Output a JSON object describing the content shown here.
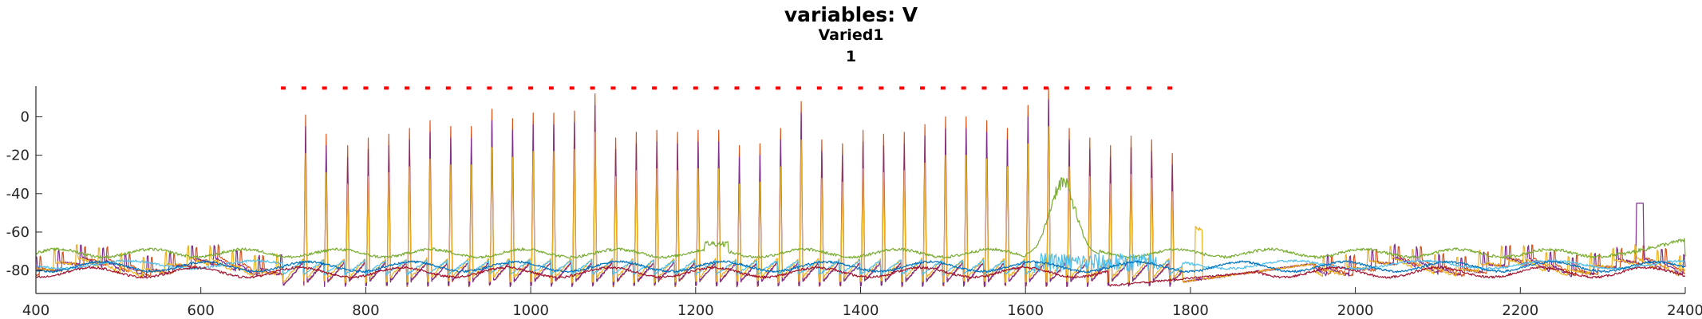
{
  "chart_data": {
    "type": "line",
    "title": "variables: V",
    "subtitle": "Varied1",
    "subtitle2": "1",
    "xlabel": "",
    "ylabel": "",
    "xlim": [
      400,
      2400
    ],
    "ylim": [
      -92,
      16
    ],
    "x_ticks": [
      400,
      600,
      800,
      1000,
      1200,
      1400,
      1600,
      1800,
      2000,
      2200,
      2400
    ],
    "y_ticks": [
      -80,
      -60,
      -40,
      -20,
      0
    ],
    "grid": false,
    "legend": "none",
    "series": [
      {
        "color": "#D95319",
        "style": "spiking"
      },
      {
        "color": "#7E2F8E",
        "style": "spiking"
      },
      {
        "color": "#EDB120",
        "style": "spiking"
      },
      {
        "color": "#77AC30",
        "style": "tonic"
      },
      {
        "color": "#4DBEEE",
        "style": "tonic"
      },
      {
        "color": "#0072BD",
        "style": "subthreshold"
      },
      {
        "color": "#A2142F",
        "style": "subthreshold"
      }
    ],
    "stimulus_markers": {
      "color": "#FF0000",
      "y": 15,
      "x_start": 700,
      "x_end": 1780,
      "step": 25
    },
    "spike_times": [
      727,
      752,
      778,
      803,
      828,
      853,
      878,
      903,
      928,
      953,
      978,
      1003,
      1028,
      1053,
      1078,
      1103,
      1128,
      1153,
      1178,
      1203,
      1228,
      1253,
      1278,
      1303,
      1328,
      1353,
      1378,
      1403,
      1428,
      1453,
      1478,
      1503,
      1528,
      1553,
      1578,
      1603,
      1628,
      1653,
      1678,
      1703,
      1728,
      1753,
      1778
    ],
    "spike_peaks": [
      1,
      -9,
      -15,
      -11,
      -9,
      -6,
      -2,
      -5,
      -5,
      4,
      -1,
      2,
      2,
      3,
      12,
      -11,
      -8,
      -7,
      -8,
      -7,
      -7,
      -15,
      -14,
      -6,
      8,
      -12,
      -14,
      -7,
      -9,
      -8,
      -4,
      0,
      0,
      -2,
      -6,
      6,
      15,
      -6,
      -11,
      -15,
      -10,
      -12,
      -19
    ]
  }
}
